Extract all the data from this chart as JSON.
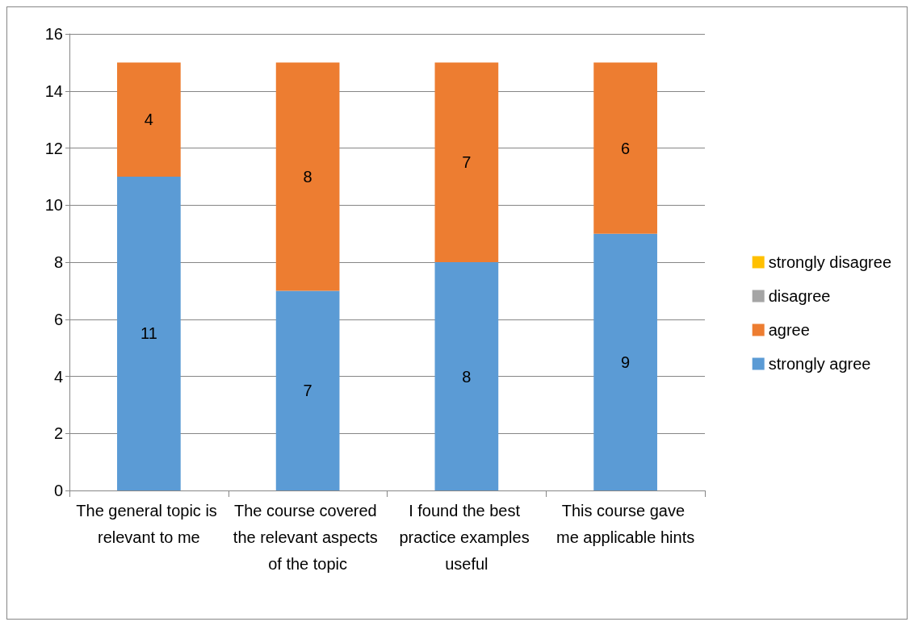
{
  "chart_data": {
    "type": "bar",
    "stacked": true,
    "categories": [
      "The general topic is relevant to me",
      "The course covered the relevant aspects of the topic",
      "I found the best practice examples useful",
      "This course gave me applicable hints"
    ],
    "series": [
      {
        "name": "strongly agree",
        "color": "#5b9bd5",
        "values": [
          11,
          7,
          8,
          9
        ],
        "value_labels": [
          "11",
          "7",
          "8",
          "9"
        ]
      },
      {
        "name": "agree",
        "color": "#ed7d31",
        "values": [
          4,
          8,
          7,
          6
        ],
        "value_labels": [
          "4",
          "8",
          "7",
          "6"
        ]
      },
      {
        "name": "disagree",
        "color": "#a5a5a5",
        "values": [
          0,
          0,
          0,
          0
        ],
        "value_labels": [
          null,
          null,
          null,
          null
        ]
      },
      {
        "name": "strongly disagree",
        "color": "#ffc000",
        "values": [
          0,
          0,
          0,
          0
        ],
        "value_labels": [
          null,
          null,
          null,
          null
        ]
      }
    ],
    "ylim": [
      0,
      16
    ],
    "yticks": [
      0,
      2,
      4,
      6,
      8,
      10,
      12,
      14,
      16
    ],
    "grid": "y",
    "legend": "right"
  }
}
